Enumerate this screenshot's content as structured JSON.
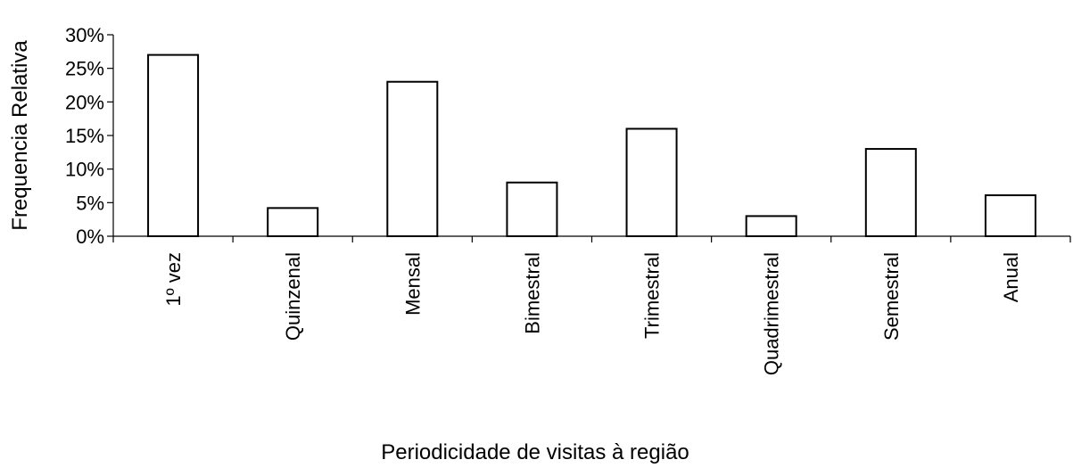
{
  "chart_data": {
    "type": "bar",
    "categories": [
      "1º vez",
      "Quinzenal",
      "Mensal",
      "Bimestral",
      "Trimestral",
      "Quadrimestral",
      "Semestral",
      "Anual"
    ],
    "values": [
      27,
      4.2,
      23,
      8,
      16,
      3,
      13,
      6.1
    ],
    "title": "",
    "xlabel": "Periodicidade de visitas à região",
    "ylabel": "Frequencia Relativa",
    "ylim": [
      0,
      30
    ],
    "yticks": [
      "0%",
      "5%",
      "10%",
      "15%",
      "20%",
      "25%",
      "30%"
    ],
    "grid": false,
    "legend": "none",
    "bar_fill": "#ffffff",
    "bar_stroke": "#000000"
  }
}
